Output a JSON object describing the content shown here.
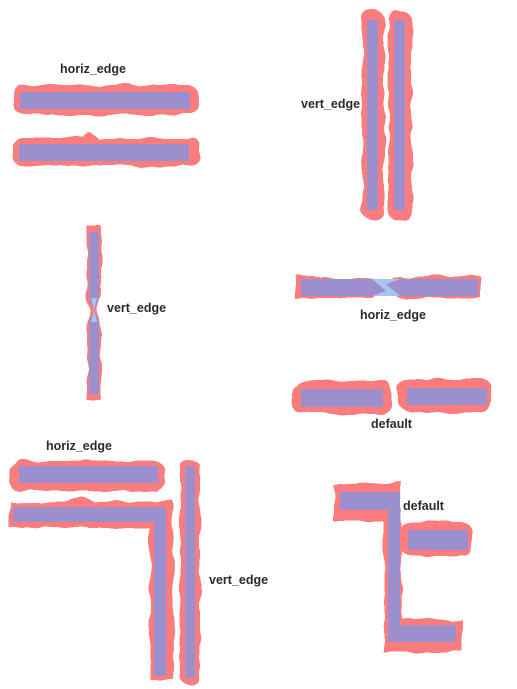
{
  "colors": {
    "halo": "#fb7b7b",
    "bar": "#9b8fcd",
    "overlap": "#a9c4ee",
    "text": "#2b2b2b"
  },
  "labels": {
    "g1": "horiz_edge",
    "g2": "vert_edge",
    "g3": "vert_edge",
    "g4": "horiz_edge",
    "g5": "default",
    "g6a": "horiz_edge",
    "g6b": "vert_edge",
    "g7": "default"
  }
}
